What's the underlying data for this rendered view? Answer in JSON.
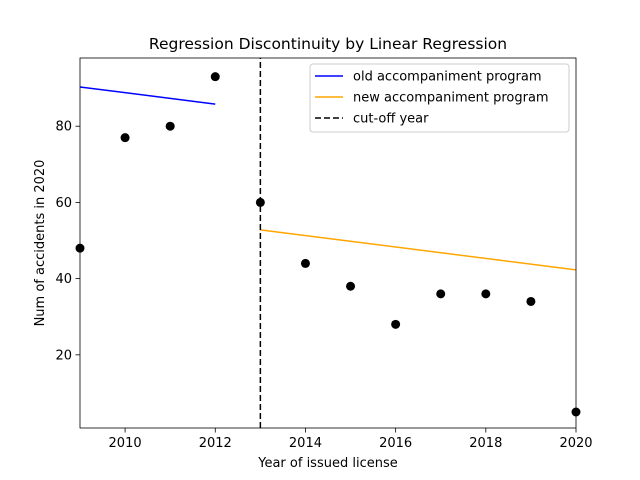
{
  "chart_data": {
    "type": "scatter",
    "title": "Regression Discontinuity by Linear Regression",
    "xlabel": "Year of issued license",
    "ylabel": "Num of accidents in 2020",
    "xlim": [
      2009,
      2020
    ],
    "ylim": [
      0.8,
      97.9
    ],
    "x_ticks": [
      2010,
      2012,
      2014,
      2016,
      2018,
      2020
    ],
    "y_ticks": [
      20,
      40,
      60,
      80
    ],
    "grid": false,
    "legend_position": "top-right",
    "points": {
      "color": "#000000",
      "x": [
        2009,
        2010,
        2011,
        2012,
        2013,
        2014,
        2015,
        2016,
        2017,
        2018,
        2019,
        2020
      ],
      "y": [
        48,
        77,
        80,
        93,
        60,
        44,
        38,
        28,
        36,
        36,
        34,
        5
      ]
    },
    "series": [
      {
        "name": "old accompaniment program",
        "color": "#0000ff",
        "style": "solid",
        "x": [
          2009,
          2012
        ],
        "y": [
          90.3,
          85.8
        ]
      },
      {
        "name": "new accompaniment program",
        "color": "#ffa500",
        "style": "solid",
        "x": [
          2013,
          2020
        ],
        "y": [
          52.8,
          42.3
        ]
      },
      {
        "name": "cut-off year",
        "color": "#000000",
        "style": "dashed",
        "x": [
          2013,
          2013
        ],
        "y": [
          0.8,
          97.9
        ]
      }
    ]
  }
}
